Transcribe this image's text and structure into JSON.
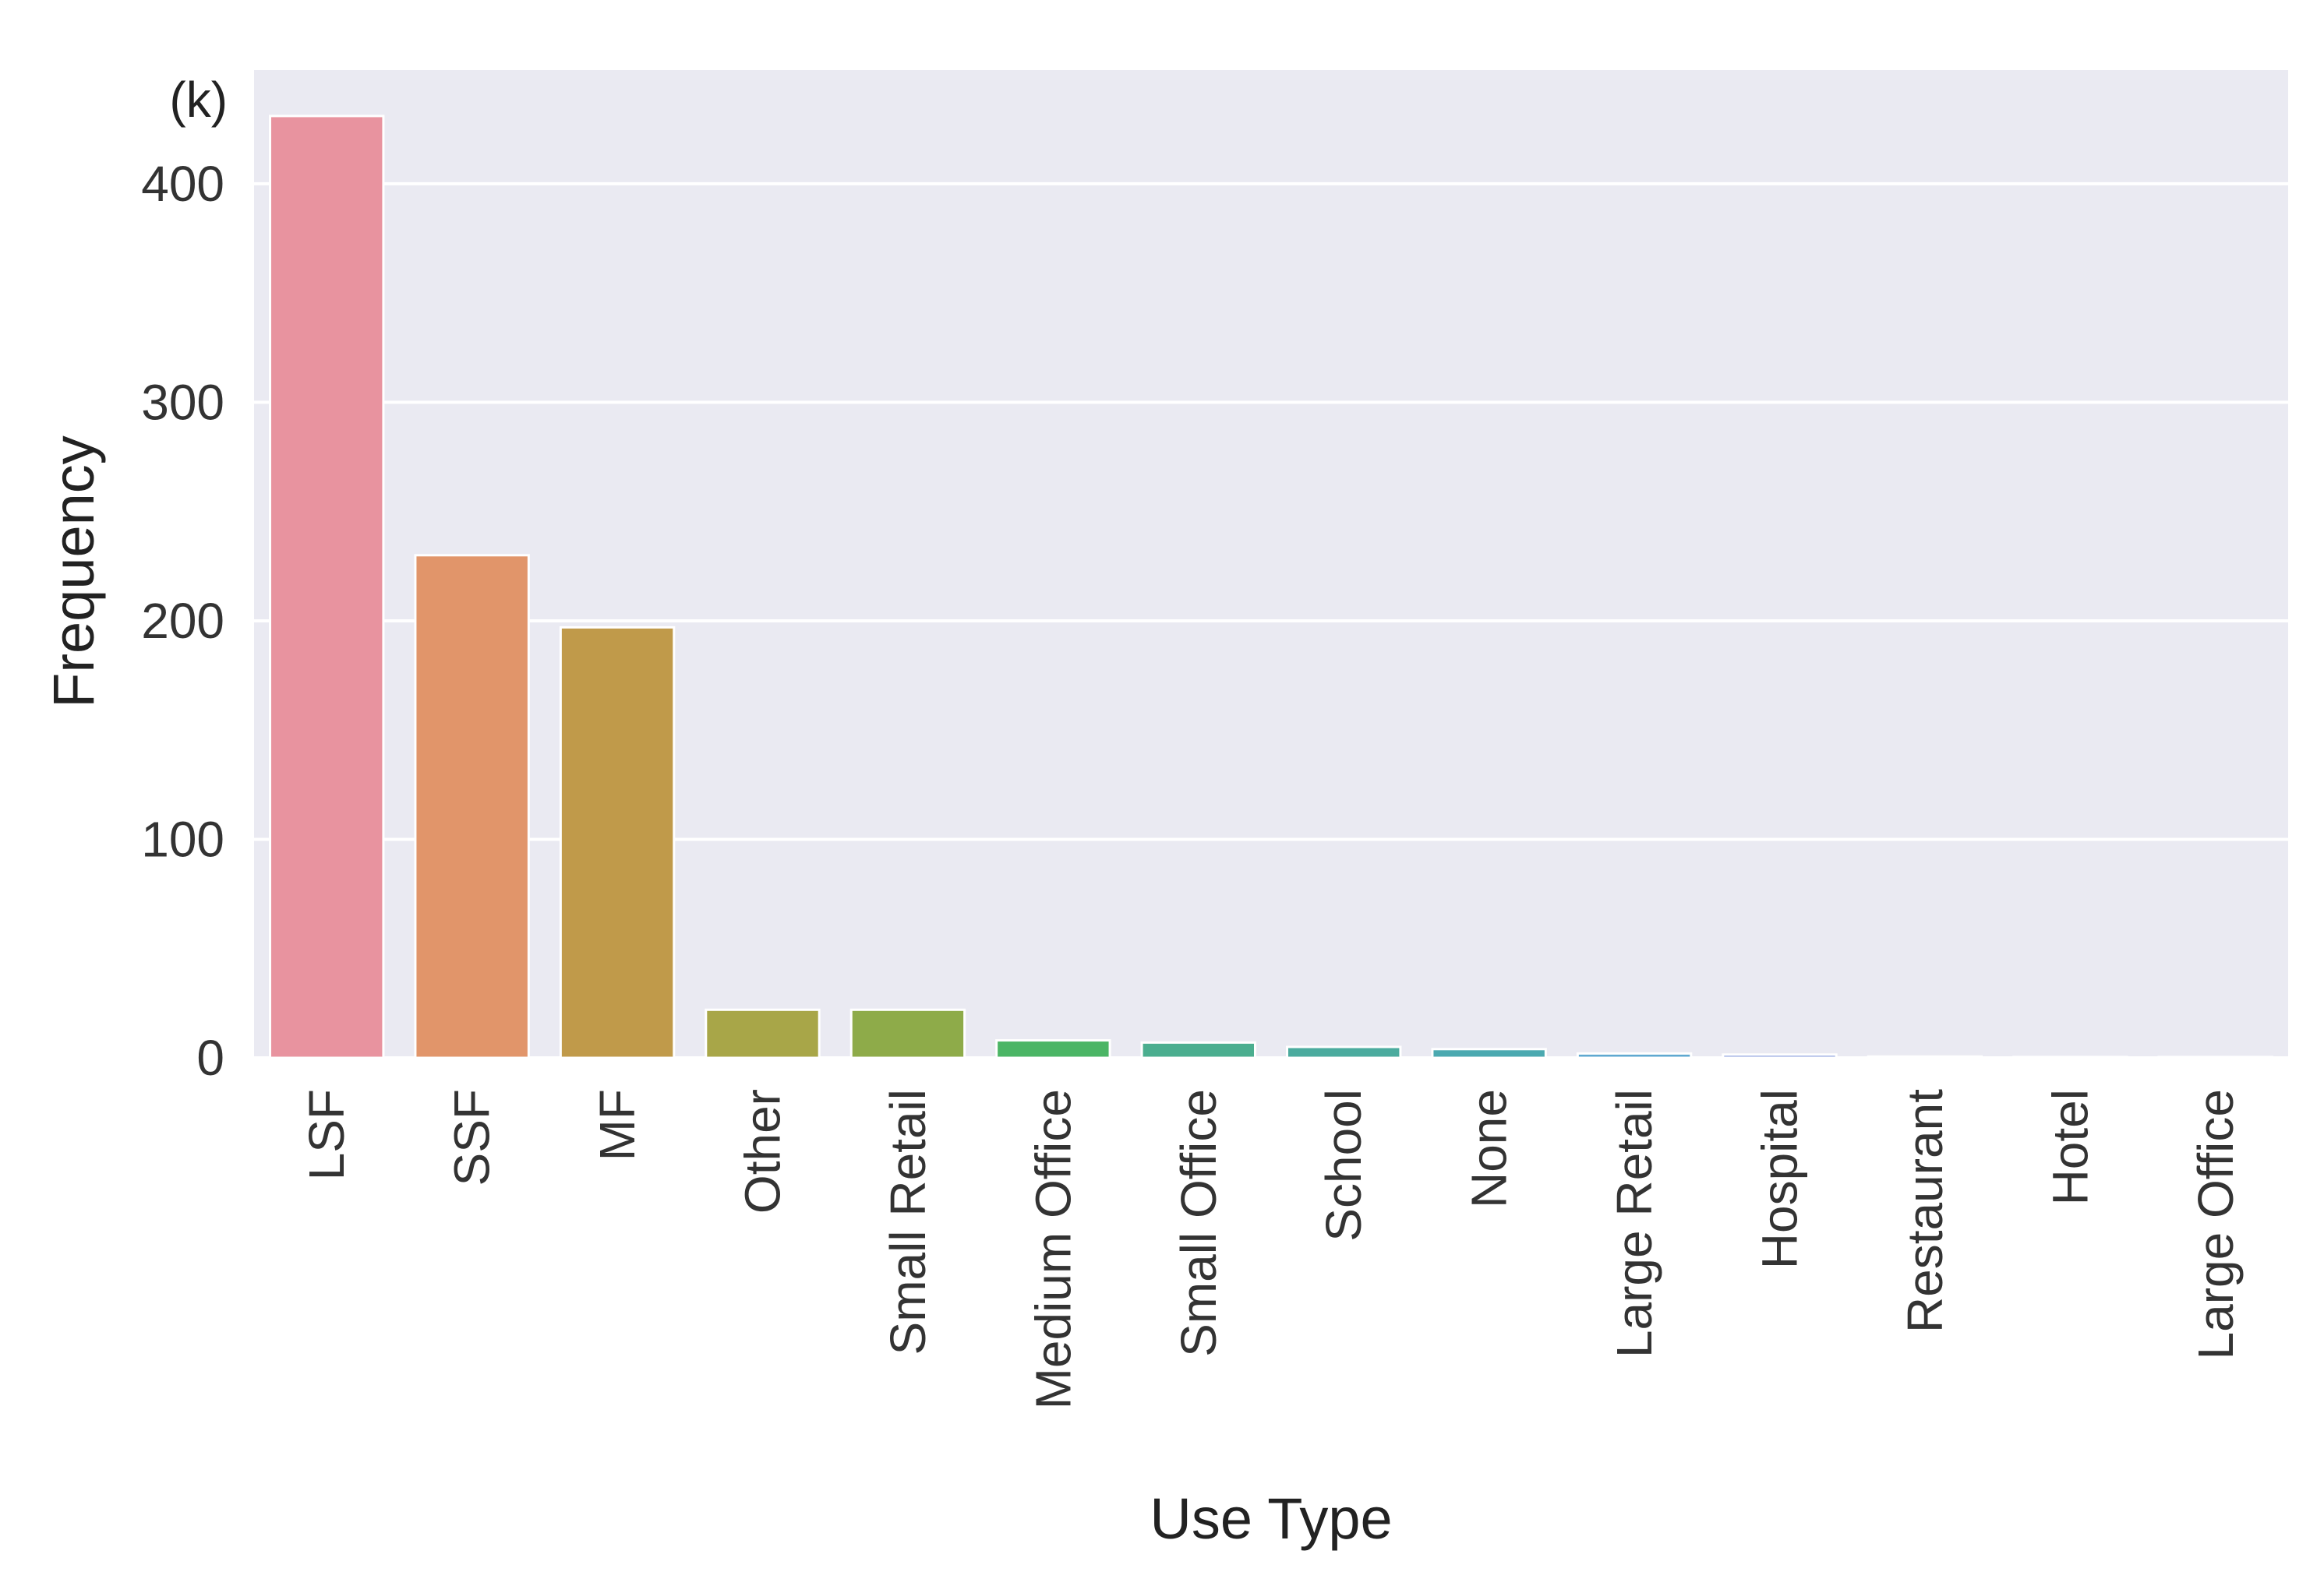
{
  "chart_data": {
    "type": "bar",
    "title": "",
    "xlabel": "Use Type",
    "ylabel": "Frequency",
    "y_unit": "(k)",
    "ylim": [
      0,
      452
    ],
    "yticks": [
      0,
      100,
      200,
      300,
      400
    ],
    "grid": true,
    "categories": [
      "LSF",
      "SSF",
      "MF",
      "Other",
      "Small Retail",
      "Medium Office",
      "Small Office",
      "School",
      "None",
      "Large Retail",
      "Hospital",
      "Restaurant",
      "Hotel",
      "Large Office"
    ],
    "values": [
      431,
      230,
      197,
      22,
      22,
      8,
      7,
      5,
      4,
      2,
      1.5,
      0.6,
      0.4,
      0.4
    ],
    "colors": [
      "#e8939f",
      "#e1956a",
      "#c09a4a",
      "#a8a648",
      "#8eab49",
      "#4bb565",
      "#4bae8f",
      "#4bab9e",
      "#4ba9b0",
      "#5fa8d0",
      "#8fa2de",
      "#b39ce0",
      "#d598de",
      "#e695c7"
    ],
    "background": "#eaeaf2",
    "gridline_color": "#ffffff"
  }
}
